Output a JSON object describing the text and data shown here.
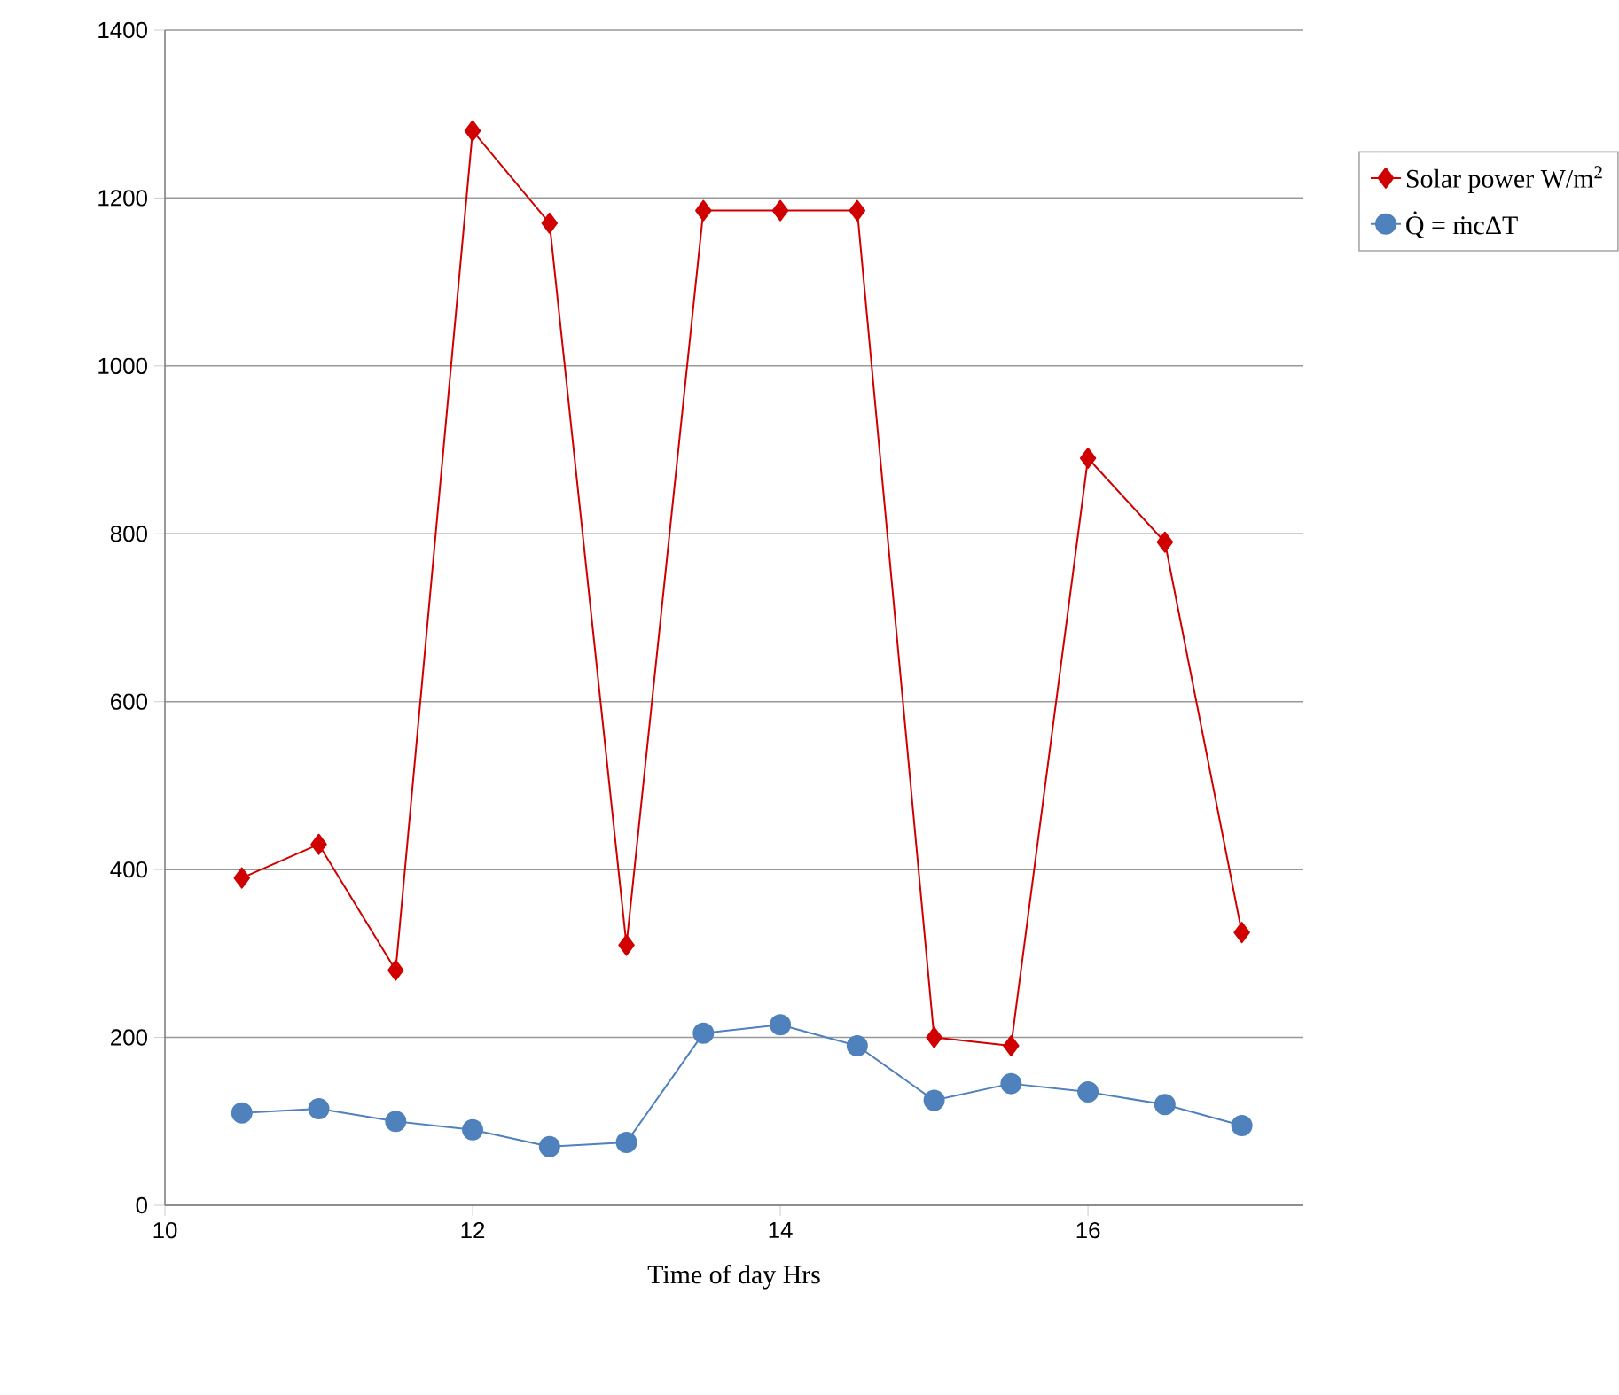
{
  "chart_data": {
    "type": "line",
    "xlabel": "Time of day Hrs",
    "x": [
      10.5,
      11,
      11.5,
      12,
      12.5,
      13,
      13.5,
      14,
      14.5,
      15,
      15.5,
      16,
      16.5,
      17
    ],
    "series": [
      {
        "name": "Solar power W/m$^{2}$",
        "color": "#d00000",
        "marker": "diamond",
        "values": [
          390,
          430,
          280,
          1280,
          1170,
          310,
          1185,
          1185,
          1185,
          200,
          190,
          890,
          790,
          325
        ]
      },
      {
        "name": "Q̇ = ṁcΔT",
        "color": "#4f81bd",
        "marker": "circle",
        "values": [
          110,
          115,
          100,
          90,
          70,
          75,
          205,
          215,
          190,
          125,
          145,
          135,
          120,
          95
        ]
      }
    ],
    "xlim": [
      10,
      17.4
    ],
    "xticks": [
      10,
      12,
      14,
      16
    ],
    "ylim": [
      0,
      1400
    ],
    "yticks": [
      0,
      200,
      400,
      600,
      800,
      1000,
      1200,
      1400
    ],
    "grid": "y",
    "legend": "right",
    "line_style": "solid"
  }
}
